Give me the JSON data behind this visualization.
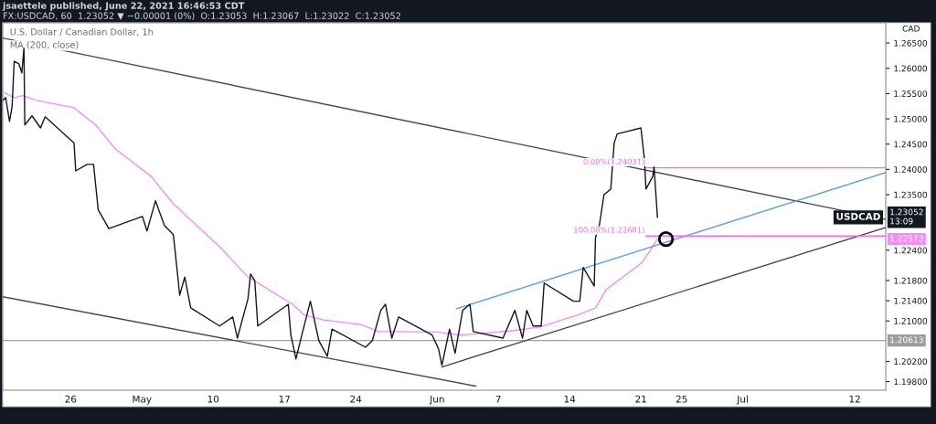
{
  "chart_data": {
    "type": "line",
    "title": "U.S. Dollar / Canadian Dollar, 1h",
    "subtitle": "MA (200, close)",
    "ylabel": "CAD",
    "annotations": [
      "jsaettele published, June 22, 2021 16:46:53 CDT",
      "FX:USDCAD, 60  1.23052 ▼ −0.00001 (0%)  O:1.23053  H:1.23067  L:1.23022  C:1.23052",
      {
        "text": "0.00%(1.24031)",
        "x": "2021-06-21T12:00",
        "y": 1.24031
      },
      {
        "text": "100.00%(1.22681)",
        "x": "2021-06-21T12:00",
        "y": 1.22681
      },
      "1.23052\n13:09",
      "1.22573"
    ],
    "xlim": [
      "2021-04-19T08:00",
      "2021-07-15T01:00"
    ],
    "xticks": [
      {
        "value": "2021-04-26",
        "label": "26"
      },
      {
        "value": "2021-05-03",
        "label": "May"
      },
      {
        "value": "2021-05-10",
        "label": "10"
      },
      {
        "value": "2021-05-17",
        "label": "17"
      },
      {
        "value": "2021-05-24",
        "label": "24"
      },
      {
        "value": "2021-06-01",
        "label": "Jun"
      },
      {
        "value": "2021-06-07",
        "label": "7"
      },
      {
        "value": "2021-06-14",
        "label": "14"
      },
      {
        "value": "2021-06-21",
        "label": "21"
      },
      {
        "value": "2021-06-25",
        "label": "25"
      },
      {
        "value": "2021-07-01",
        "label": "Jul"
      },
      {
        "value": "2021-07-12",
        "label": "12"
      }
    ],
    "ylim": [
      1.1963,
      1.269
    ],
    "yticks": [
      {
        "value": 1.265,
        "label": "1.26500"
      },
      {
        "value": 1.26,
        "label": "1.26000"
      },
      {
        "value": 1.255,
        "label": "1.25500"
      },
      {
        "value": 1.25,
        "label": "1.25000"
      },
      {
        "value": 1.245,
        "label": "1.24500"
      },
      {
        "value": 1.24,
        "label": "1.24000"
      },
      {
        "value": 1.235,
        "label": "1.23500"
      },
      {
        "value": 1.224,
        "label": "1.22400"
      },
      {
        "value": 1.218,
        "label": "1.21800"
      },
      {
        "value": 1.214,
        "label": "1.21400"
      },
      {
        "value": 1.21,
        "label": "1.21000"
      },
      {
        "value": 1.202,
        "label": "1.20200"
      },
      {
        "value": 1.198,
        "label": "1.19800"
      }
    ],
    "grid": false,
    "legend": "right",
    "ref_lines": [
      {
        "axis": "y",
        "value": 1.20613,
        "label": "1.20613",
        "color": "#9e9e9e"
      }
    ],
    "series": [
      {
        "name": "USDCAD",
        "type": "line",
        "color": "#131722",
        "marker": "none",
        "x": [
          "2021-04-19T09:00",
          "2021-04-19T15:00",
          "2021-04-20T00:00",
          "2021-04-20T06:00",
          "2021-04-20T11:00",
          "2021-04-20T22:00",
          "2021-04-21T05:00",
          "2021-04-21T10:00",
          "2021-04-21T12:00",
          "2021-04-22T05:00",
          "2021-04-23T01:00",
          "2021-04-23T12:00",
          "2021-04-26T08:00",
          "2021-04-26T12:00",
          "2021-04-27T15:00",
          "2021-04-28T06:00",
          "2021-04-28T17:00",
          "2021-04-29T18:00",
          "2021-05-03T01:00",
          "2021-05-03T12:00",
          "2021-05-04T08:00",
          "2021-05-05T05:00",
          "2021-05-06T02:00",
          "2021-05-06T12:00",
          "2021-05-06T17:00",
          "2021-05-07T05:00",
          "2021-05-07T19:00",
          "2021-05-10T15:00",
          "2021-05-11T22:00",
          "2021-05-12T09:00",
          "2021-05-13T10:00",
          "2021-05-13T16:00",
          "2021-05-14T02:00",
          "2021-05-14T09:00",
          "2021-05-17T09:00",
          "2021-05-17T15:00",
          "2021-05-18T03:00",
          "2021-05-18T15:00",
          "2021-05-19T13:00",
          "2021-05-20T09:00",
          "2021-05-21T05:00",
          "2021-05-21T16:00",
          "2021-05-24T23:00",
          "2021-05-25T15:00",
          "2021-05-26T11:00",
          "2021-05-26T22:00",
          "2021-05-27T13:00",
          "2021-05-28T05:00",
          "2021-05-31T12:00",
          "2021-06-01T03:00",
          "2021-06-01T11:00",
          "2021-06-02T05:00",
          "2021-06-02T18:00",
          "2021-06-03T12:00",
          "2021-06-04T05:00",
          "2021-06-04T13:00",
          "2021-06-07T11:00",
          "2021-06-08T15:00",
          "2021-06-09T09:00",
          "2021-06-09T19:00",
          "2021-06-10T10:00",
          "2021-06-11T05:00",
          "2021-06-11T12:00",
          "2021-06-14T09:00",
          "2021-06-15T00:00",
          "2021-06-15T08:00",
          "2021-06-16T10:00",
          "2021-06-16T13:00",
          "2021-06-16T22:00",
          "2021-06-17T09:00",
          "2021-06-18T01:00",
          "2021-06-18T09:00",
          "2021-06-18T16:00",
          "2021-06-21T00:00",
          "2021-06-21T08:00",
          "2021-06-21T12:00",
          "2021-06-22T04:00",
          "2021-06-22T07:00",
          "2021-06-22T15:00"
        ],
        "values": [
          1.2537,
          1.2542,
          1.2495,
          1.2524,
          1.2614,
          1.2609,
          1.2591,
          1.264,
          1.2488,
          1.2506,
          1.2482,
          1.2504,
          1.2452,
          1.2397,
          1.241,
          1.241,
          1.232,
          1.2283,
          1.2307,
          1.2278,
          1.2338,
          1.2289,
          1.2271,
          1.2193,
          1.2151,
          1.2187,
          1.2126,
          1.209,
          1.2108,
          1.2066,
          1.2144,
          1.2193,
          1.218,
          1.209,
          1.2133,
          1.2072,
          1.2025,
          1.2066,
          1.2139,
          1.2061,
          1.203,
          1.2084,
          1.2048,
          1.2061,
          1.2121,
          1.2133,
          1.2066,
          1.2108,
          1.2072,
          1.2045,
          1.2012,
          1.2084,
          1.2036,
          1.2121,
          1.2133,
          1.2079,
          1.2066,
          1.2121,
          1.2066,
          1.2121,
          1.209,
          1.209,
          1.2175,
          1.2139,
          1.2139,
          1.2206,
          1.2169,
          1.2265,
          1.2289,
          1.235,
          1.2361,
          1.2452,
          1.247,
          1.2482,
          1.2423,
          1.2361,
          1.2386,
          1.2405,
          1.23052
        ]
      },
      {
        "type": "line",
        "color": "#f78cf7",
        "marker": "none",
        "x": [
          "2021-04-19T09:00",
          "2021-04-20T11:00",
          "2021-04-21T07:00",
          "2021-04-22T14:00",
          "2021-04-26T08:00",
          "2021-04-28T11:00",
          "2021-04-30T09:00",
          "2021-05-03T22:00",
          "2021-05-06T02:00",
          "2021-05-10T15:00",
          "2021-05-13T10:00",
          "2021-05-17T19:00",
          "2021-05-18T22:00",
          "2021-05-20T20:00",
          "2021-05-24T12:00",
          "2021-05-26T06:00",
          "2021-05-27T18:00",
          "2021-06-01T03:00",
          "2021-06-03T06:00",
          "2021-06-08T12:00",
          "2021-06-11T02:00",
          "2021-06-14T19:00",
          "2021-06-16T13:00",
          "2021-06-17T14:00",
          "2021-06-21T03:00",
          "2021-06-22T15:00"
        ],
        "values": [
          1.2553,
          1.2542,
          1.2546,
          1.2537,
          1.2522,
          1.2488,
          1.2441,
          1.2386,
          1.2332,
          1.2247,
          1.2187,
          1.2133,
          1.2112,
          1.2102,
          1.2093,
          1.2079,
          1.2079,
          1.2078,
          1.2072,
          1.2081,
          1.2088,
          1.2112,
          1.2126,
          1.2162,
          1.2216,
          1.2262
        ]
      },
      {
        "type": "line",
        "color": "#4a4a4a",
        "marker": "none",
        "x": [
          "2021-04-19T08:00",
          "2021-07-15T01:00"
        ],
        "values": [
          1.266,
          1.2301
        ]
      },
      {
        "type": "line",
        "color": "#4a4a4a",
        "marker": "none",
        "x": [
          "2021-04-19T08:00",
          "2021-06-04T19:00"
        ],
        "values": [
          1.2148,
          1.1971
        ]
      },
      {
        "type": "line",
        "color": "#4a4a4a",
        "marker": "none",
        "x": [
          "2021-06-01T11:00",
          "2021-07-15T01:00"
        ],
        "values": [
          1.2009,
          1.2285
        ]
      },
      {
        "type": "line",
        "color": "#5b9cf6",
        "marker": "none",
        "x": [
          "2021-06-02T21:00",
          "2021-07-15T01:00"
        ],
        "values": [
          1.2124,
          1.2394
        ]
      },
      {
        "type": "line",
        "color": "#f36af3",
        "marker": "none",
        "x": [
          "2021-06-21T12:00",
          "2021-07-15T01:00"
        ],
        "values": [
          1.24031,
          1.24031
        ]
      },
      {
        "type": "line",
        "color": "#f36af3",
        "marker": "none",
        "x": [
          "2021-06-21T12:00",
          "2021-07-15T01:00"
        ],
        "values": [
          1.22681,
          1.22681
        ]
      },
      {
        "type": "scatter",
        "color": "#000000",
        "marker": "circle",
        "x": [
          "2021-06-23T11:00"
        ],
        "values": [
          1.2262
        ]
      }
    ]
  }
}
